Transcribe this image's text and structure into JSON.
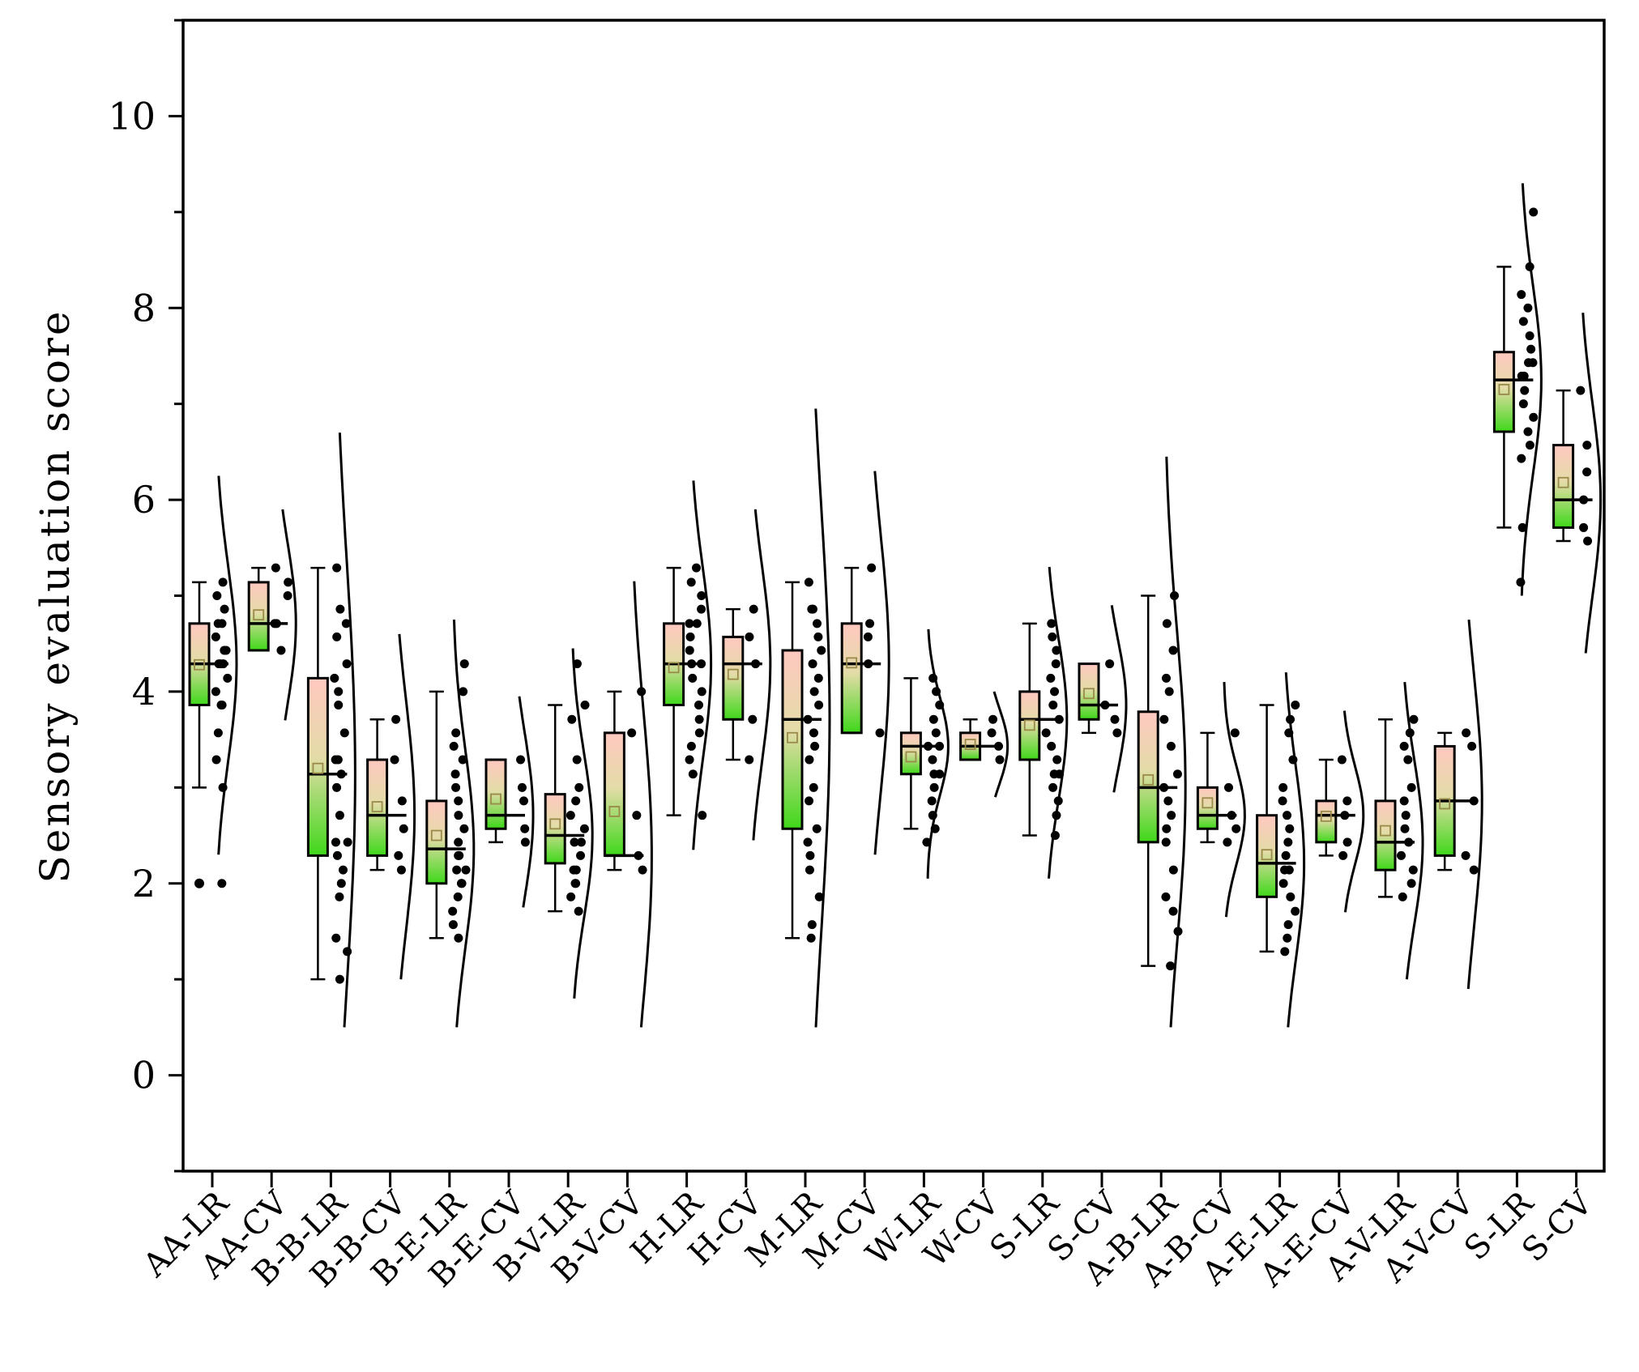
{
  "chart_data": {
    "type": "box",
    "subtype": "half-box with jittered points and half-violin",
    "title": "",
    "xlabel": "",
    "ylabel": "Sensory evaluation score",
    "ylim": [
      -1,
      11
    ],
    "yticks": [
      0,
      2,
      4,
      6,
      8,
      10
    ],
    "ytick_labels": [
      "0",
      "2",
      "4",
      "6",
      "8",
      "10"
    ],
    "grid": false,
    "legend": "none",
    "colors": {
      "box_top": "#ffc8c0",
      "box_mid": "#e4dca8",
      "box_bottom": "#3fd81a",
      "line": "#000000",
      "mean_marker_stroke": "#9a8a4a"
    },
    "categories": [
      "AA-LR",
      "AA-CV",
      "B-B-LR",
      "B-B-CV",
      "B-E-LR",
      "B-E-CV",
      "B-V-LR",
      "B-V-CV",
      "H-LR",
      "H-CV",
      "M-LR",
      "M-CV",
      "W-LR",
      "W-CV",
      "S-LR",
      "S-CV",
      "A-B-LR",
      "A-B-CV",
      "A-E-LR",
      "A-E-CV",
      "A-V-LR",
      "A-V-CV",
      "S-LR",
      "S-CV"
    ],
    "series": [
      {
        "name": "AA-LR",
        "whisker_low": 3.0,
        "q1": 3.86,
        "median": 4.29,
        "q3": 4.71,
        "whisker_high": 5.14,
        "mean": 4.28,
        "outliers": [
          2.0
        ],
        "points": [
          2.0,
          3.0,
          3.29,
          3.57,
          3.86,
          3.86,
          4.0,
          4.14,
          4.29,
          4.29,
          4.29,
          4.43,
          4.43,
          4.57,
          4.71,
          4.71,
          4.86,
          5.0,
          5.14
        ],
        "violin_low": 2.3,
        "violin_high": 6.25
      },
      {
        "name": "AA-CV",
        "whisker_low": 4.43,
        "q1": 4.43,
        "median": 4.71,
        "q3": 5.14,
        "whisker_high": 5.29,
        "mean": 4.8,
        "outliers": [],
        "points": [
          4.43,
          4.71,
          4.71,
          5.0,
          5.14,
          5.29
        ],
        "violin_low": 3.7,
        "violin_high": 5.9
      },
      {
        "name": "B-B-LR",
        "whisker_low": 1.0,
        "q1": 2.29,
        "median": 3.14,
        "q3": 4.14,
        "whisker_high": 5.29,
        "mean": 3.2,
        "outliers": [],
        "points": [
          1.0,
          1.29,
          1.43,
          1.86,
          2.0,
          2.14,
          2.29,
          2.43,
          2.43,
          2.71,
          3.0,
          3.14,
          3.29,
          3.29,
          3.57,
          3.86,
          4.0,
          4.14,
          4.29,
          4.57,
          4.71,
          4.86,
          5.29
        ],
        "violin_low": 0.5,
        "violin_high": 6.7
      },
      {
        "name": "B-B-CV",
        "whisker_low": 2.14,
        "q1": 2.29,
        "median": 2.71,
        "q3": 3.29,
        "whisker_high": 3.71,
        "mean": 2.8,
        "outliers": [],
        "points": [
          2.14,
          2.29,
          2.57,
          2.86,
          3.29,
          3.71
        ],
        "violin_low": 1.0,
        "violin_high": 4.6
      },
      {
        "name": "B-E-LR",
        "whisker_low": 1.43,
        "q1": 2.0,
        "median": 2.36,
        "q3": 2.86,
        "whisker_high": 4.0,
        "mean": 2.5,
        "outliers": [],
        "points": [
          1.43,
          1.57,
          1.71,
          1.86,
          2.0,
          2.0,
          2.14,
          2.14,
          2.29,
          2.29,
          2.43,
          2.57,
          2.71,
          2.86,
          3.0,
          3.14,
          3.29,
          3.43,
          3.57,
          4.0,
          4.29
        ],
        "violin_low": 0.5,
        "violin_high": 4.75
      },
      {
        "name": "B-E-CV",
        "whisker_low": 2.43,
        "q1": 2.57,
        "median": 2.71,
        "q3": 3.29,
        "whisker_high": 3.29,
        "mean": 2.88,
        "outliers": [],
        "points": [
          2.43,
          2.57,
          2.86,
          3.0,
          3.29
        ],
        "violin_low": 1.75,
        "violin_high": 3.95
      },
      {
        "name": "B-V-LR",
        "whisker_low": 1.71,
        "q1": 2.21,
        "median": 2.5,
        "q3": 2.93,
        "whisker_high": 3.86,
        "mean": 2.62,
        "outliers": [],
        "points": [
          1.71,
          1.86,
          2.0,
          2.0,
          2.14,
          2.14,
          2.29,
          2.43,
          2.43,
          2.57,
          2.71,
          2.86,
          3.0,
          3.29,
          3.71,
          3.86,
          4.29
        ],
        "violin_low": 0.8,
        "violin_high": 4.45
      },
      {
        "name": "B-V-CV",
        "whisker_low": 2.14,
        "q1": 2.29,
        "median": 2.29,
        "q3": 3.57,
        "whisker_high": 4.0,
        "mean": 2.75,
        "outliers": [],
        "points": [
          2.14,
          2.29,
          2.71,
          3.57,
          4.0
        ],
        "violin_low": 0.5,
        "violin_high": 5.15
      },
      {
        "name": "H-LR",
        "whisker_low": 2.71,
        "q1": 3.86,
        "median": 4.29,
        "q3": 4.71,
        "whisker_high": 5.29,
        "mean": 4.25,
        "outliers": [],
        "points": [
          2.71,
          3.14,
          3.29,
          3.43,
          3.57,
          3.71,
          3.86,
          4.0,
          4.14,
          4.29,
          4.29,
          4.43,
          4.57,
          4.71,
          4.71,
          4.86,
          5.0,
          5.14,
          5.29
        ],
        "violin_low": 2.35,
        "violin_high": 6.2
      },
      {
        "name": "H-CV",
        "whisker_low": 3.29,
        "q1": 3.71,
        "median": 4.29,
        "q3": 4.57,
        "whisker_high": 4.86,
        "mean": 4.18,
        "outliers": [],
        "points": [
          3.29,
          3.71,
          4.29,
          4.57,
          4.86
        ],
        "violin_low": 2.45,
        "violin_high": 5.9
      },
      {
        "name": "M-LR",
        "whisker_low": 1.43,
        "q1": 2.57,
        "median": 3.71,
        "q3": 4.43,
        "whisker_high": 5.14,
        "mean": 3.52,
        "outliers": [],
        "points": [
          1.43,
          1.57,
          1.86,
          2.14,
          2.29,
          2.43,
          2.57,
          2.86,
          3.0,
          3.29,
          3.43,
          3.57,
          3.71,
          3.86,
          4.0,
          4.14,
          4.29,
          4.43,
          4.57,
          4.71,
          4.86,
          4.86,
          5.14
        ],
        "violin_low": 0.5,
        "violin_high": 6.95
      },
      {
        "name": "M-CV",
        "whisker_low": 3.57,
        "q1": 3.57,
        "median": 4.29,
        "q3": 4.71,
        "whisker_high": 5.29,
        "mean": 4.3,
        "outliers": [],
        "points": [
          3.57,
          4.29,
          4.57,
          4.71,
          5.29
        ],
        "violin_low": 2.3,
        "violin_high": 6.3
      },
      {
        "name": "W-LR",
        "whisker_low": 2.57,
        "q1": 3.14,
        "median": 3.43,
        "q3": 3.57,
        "whisker_high": 4.14,
        "mean": 3.32,
        "outliers": [],
        "points": [
          2.43,
          2.57,
          2.71,
          2.86,
          3.0,
          3.14,
          3.14,
          3.29,
          3.43,
          3.43,
          3.57,
          3.71,
          3.86,
          4.0,
          4.14
        ],
        "violin_low": 2.05,
        "violin_high": 4.65
      },
      {
        "name": "W-CV",
        "whisker_low": 3.29,
        "q1": 3.29,
        "median": 3.43,
        "q3": 3.57,
        "whisker_high": 3.71,
        "mean": 3.45,
        "outliers": [],
        "points": [
          3.29,
          3.43,
          3.57,
          3.71
        ],
        "violin_low": 2.9,
        "violin_high": 4.0
      },
      {
        "name": "S-LR",
        "whisker_low": 2.5,
        "q1": 3.29,
        "median": 3.71,
        "q3": 4.0,
        "whisker_high": 4.71,
        "mean": 3.65,
        "outliers": [],
        "points": [
          2.5,
          2.71,
          2.86,
          3.0,
          3.14,
          3.14,
          3.29,
          3.43,
          3.57,
          3.71,
          3.86,
          4.0,
          4.14,
          4.29,
          4.43,
          4.57,
          4.71
        ],
        "violin_low": 2.05,
        "violin_high": 5.3
      },
      {
        "name": "S-CV",
        "whisker_low": 3.57,
        "q1": 3.71,
        "median": 3.86,
        "q3": 4.29,
        "whisker_high": 4.29,
        "mean": 3.98,
        "outliers": [],
        "points": [
          3.57,
          3.71,
          3.86,
          4.29
        ],
        "violin_low": 2.95,
        "violin_high": 4.9
      },
      {
        "name": "A-B-LR",
        "whisker_low": 1.14,
        "q1": 2.43,
        "median": 3.0,
        "q3": 3.79,
        "whisker_high": 5.0,
        "mean": 3.08,
        "outliers": [],
        "points": [
          1.14,
          1.5,
          1.71,
          1.86,
          2.14,
          2.43,
          2.57,
          2.71,
          2.86,
          3.0,
          3.14,
          3.43,
          3.71,
          4.0,
          4.14,
          4.43,
          4.71,
          5.0
        ],
        "violin_low": 0.5,
        "violin_high": 6.45
      },
      {
        "name": "A-B-CV",
        "whisker_low": 2.43,
        "q1": 2.57,
        "median": 2.71,
        "q3": 3.0,
        "whisker_high": 3.57,
        "mean": 2.84,
        "outliers": [],
        "points": [
          2.43,
          2.57,
          2.71,
          3.0,
          3.57
        ],
        "violin_low": 1.65,
        "violin_high": 4.1
      },
      {
        "name": "A-E-LR",
        "whisker_low": 1.29,
        "q1": 1.86,
        "median": 2.21,
        "q3": 2.71,
        "whisker_high": 3.86,
        "mean": 2.3,
        "outliers": [],
        "points": [
          1.29,
          1.43,
          1.57,
          1.71,
          1.86,
          2.0,
          2.14,
          2.14,
          2.29,
          2.43,
          2.57,
          2.71,
          2.86,
          3.0,
          3.29,
          3.57,
          3.71,
          3.86
        ],
        "violin_low": 0.5,
        "violin_high": 4.2
      },
      {
        "name": "A-E-CV",
        "whisker_low": 2.29,
        "q1": 2.43,
        "median": 2.71,
        "q3": 2.86,
        "whisker_high": 3.29,
        "mean": 2.7,
        "outliers": [],
        "points": [
          2.29,
          2.43,
          2.71,
          2.86,
          3.29
        ],
        "violin_low": 1.7,
        "violin_high": 3.8
      },
      {
        "name": "A-V-LR",
        "whisker_low": 1.86,
        "q1": 2.14,
        "median": 2.43,
        "q3": 2.86,
        "whisker_high": 3.71,
        "mean": 2.55,
        "outliers": [],
        "points": [
          1.86,
          2.0,
          2.14,
          2.29,
          2.43,
          2.57,
          2.71,
          2.86,
          3.0,
          3.29,
          3.43,
          3.57,
          3.71
        ],
        "violin_low": 1.0,
        "violin_high": 4.1
      },
      {
        "name": "A-V-CV",
        "whisker_low": 2.14,
        "q1": 2.29,
        "median": 2.86,
        "q3": 3.43,
        "whisker_high": 3.57,
        "mean": 2.83,
        "outliers": [],
        "points": [
          2.14,
          2.29,
          2.86,
          3.43,
          3.57
        ],
        "violin_low": 0.9,
        "violin_high": 4.75
      },
      {
        "name": "S-LR",
        "whisker_low": 5.71,
        "q1": 6.71,
        "median": 7.25,
        "q3": 7.54,
        "whisker_high": 8.43,
        "mean": 7.15,
        "outliers": [],
        "points": [
          5.14,
          5.71,
          6.43,
          6.57,
          6.71,
          6.86,
          7.0,
          7.14,
          7.29,
          7.29,
          7.43,
          7.43,
          7.57,
          7.71,
          7.86,
          8.0,
          8.14,
          8.43,
          9.0
        ],
        "violin_low": 5.0,
        "violin_high": 9.3
      },
      {
        "name": "S-CV",
        "whisker_low": 5.57,
        "q1": 5.71,
        "median": 6.0,
        "q3": 6.57,
        "whisker_high": 7.14,
        "mean": 6.18,
        "outliers": [],
        "points": [
          5.57,
          5.71,
          6.0,
          6.29,
          6.57,
          7.14
        ],
        "violin_low": 4.4,
        "violin_high": 7.95
      }
    ]
  }
}
